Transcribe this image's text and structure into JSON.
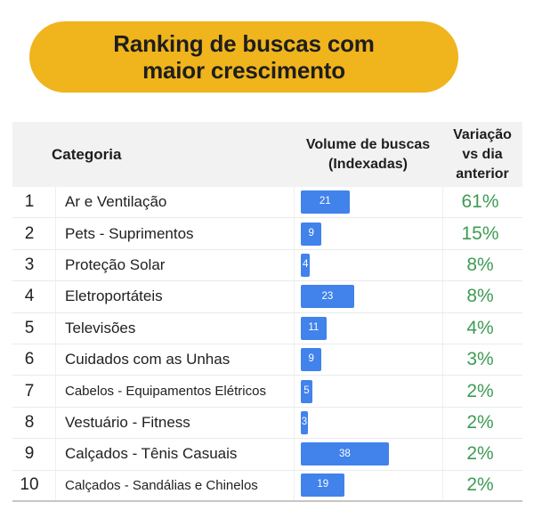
{
  "banner": {
    "line1": "Ranking de buscas com",
    "line2": "maior crescimento"
  },
  "table": {
    "header": {
      "category": "Categoria",
      "volume_line1": "Volume de buscas",
      "volume_line2": "(Indexadas)",
      "variation_line1": "Variação",
      "variation_line2": "vs dia",
      "variation_line3": "anterior"
    },
    "rows": [
      {
        "rank": "1",
        "category": "Ar e Ventilação",
        "volume": "21",
        "variation": "61%"
      },
      {
        "rank": "2",
        "category": "Pets - Suprimentos",
        "volume": "9",
        "variation": "15%"
      },
      {
        "rank": "3",
        "category": "Proteção Solar",
        "volume": "4",
        "variation": "8%"
      },
      {
        "rank": "4",
        "category": "Eletroportáteis",
        "volume": "23",
        "variation": "8%"
      },
      {
        "rank": "5",
        "category": "Televisões",
        "volume": "11",
        "variation": "4%"
      },
      {
        "rank": "6",
        "category": "Cuidados com as Unhas",
        "volume": "9",
        "variation": "3%"
      },
      {
        "rank": "7",
        "category": "Cabelos - Equipamentos Elétricos",
        "volume": "5",
        "variation": "2%"
      },
      {
        "rank": "8",
        "category": "Vestuário - Fitness",
        "volume": "3",
        "variation": "2%"
      },
      {
        "rank": "9",
        "category": "Calçados - Tênis Casuais",
        "volume": "38",
        "variation": "2%"
      },
      {
        "rank": "10",
        "category": "Calçados - Sandálias e Chinelos",
        "volume": "19",
        "variation": "2%"
      }
    ]
  },
  "colors": {
    "banner_bg": "#F0B41C",
    "bar": "#4182EB",
    "positive": "#3E9B54"
  },
  "chart_data": {
    "type": "bar",
    "orientation": "horizontal",
    "title": "Ranking de buscas com maior crescimento",
    "categories": [
      "Ar e Ventilação",
      "Pets - Suprimentos",
      "Proteção Solar",
      "Eletroportáteis",
      "Televisões",
      "Cuidados com as Unhas",
      "Cabelos - Equipamentos Elétricos",
      "Vestuário - Fitness",
      "Calçados - Tênis Casuais",
      "Calçados - Sandálias e Chinelos"
    ],
    "ranks": [
      1,
      2,
      3,
      4,
      5,
      6,
      7,
      8,
      9,
      10
    ],
    "series": [
      {
        "name": "Volume de buscas (Indexadas)",
        "values": [
          21,
          9,
          4,
          23,
          11,
          9,
          5,
          3,
          38,
          19
        ]
      },
      {
        "name": "Variação vs dia anterior (%)",
        "values": [
          61,
          15,
          8,
          8,
          4,
          3,
          2,
          2,
          2,
          2
        ]
      }
    ],
    "value_labels_shown": true,
    "legend_position": "none",
    "grid": false
  }
}
